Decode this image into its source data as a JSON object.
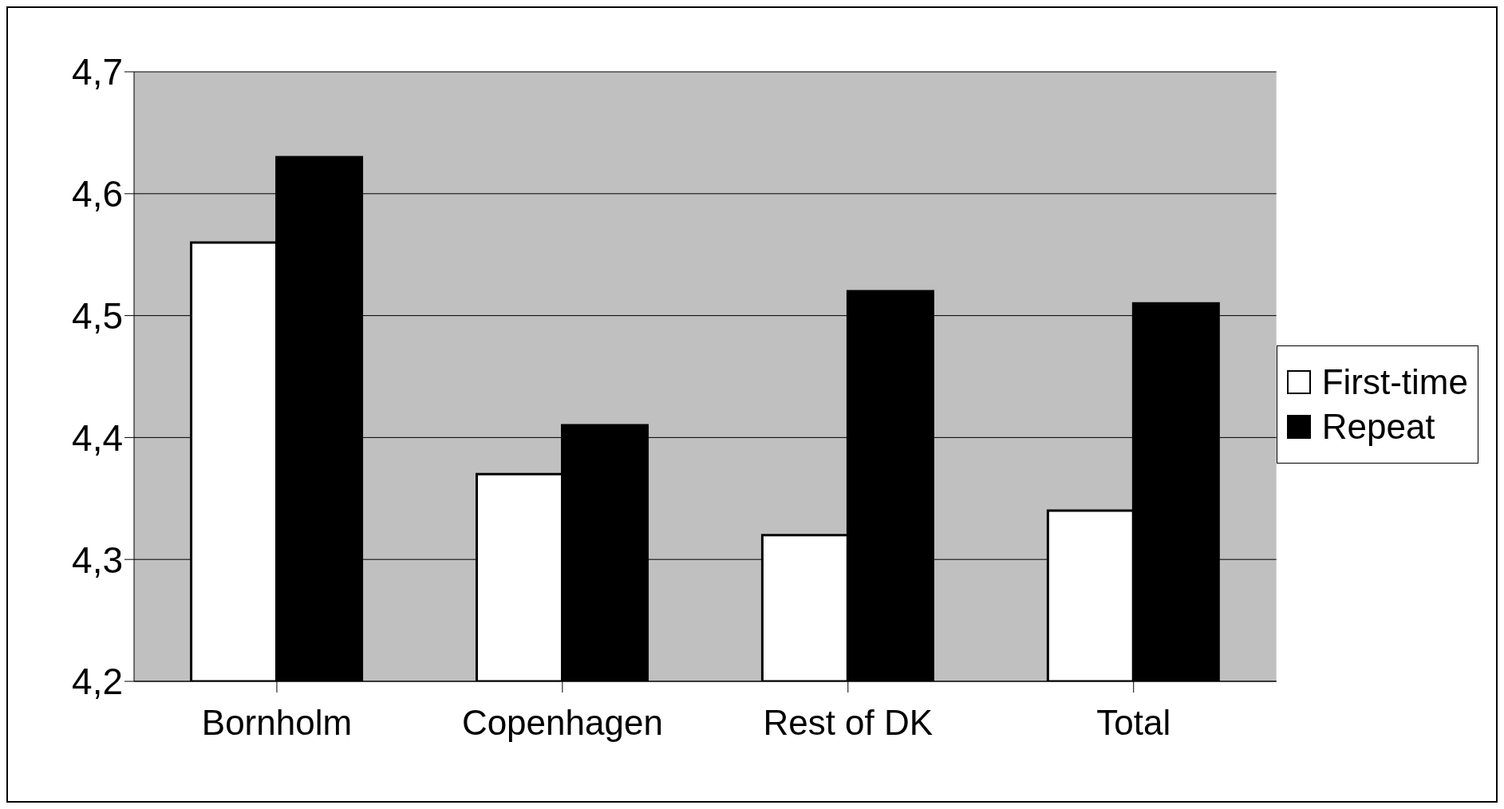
{
  "chart_data": {
    "type": "bar",
    "categories": [
      "Bornholm",
      "Copenhagen",
      "Rest of DK",
      "Total"
    ],
    "series": [
      {
        "name": "First-time",
        "color": "#ffffff",
        "values": [
          4.56,
          4.37,
          4.32,
          4.34
        ]
      },
      {
        "name": "Repeat",
        "color": "#000000",
        "values": [
          4.63,
          4.41,
          4.52,
          4.51
        ]
      }
    ],
    "ylim": [
      4.2,
      4.7
    ],
    "yticks": [
      {
        "value": 4.2,
        "label": "4,2"
      },
      {
        "value": 4.3,
        "label": "4,3"
      },
      {
        "value": 4.4,
        "label": "4,4"
      },
      {
        "value": 4.5,
        "label": "4,5"
      },
      {
        "value": 4.6,
        "label": "4,6"
      },
      {
        "value": 4.7,
        "label": "4,7"
      }
    ],
    "grid": "y",
    "legend": "right"
  }
}
